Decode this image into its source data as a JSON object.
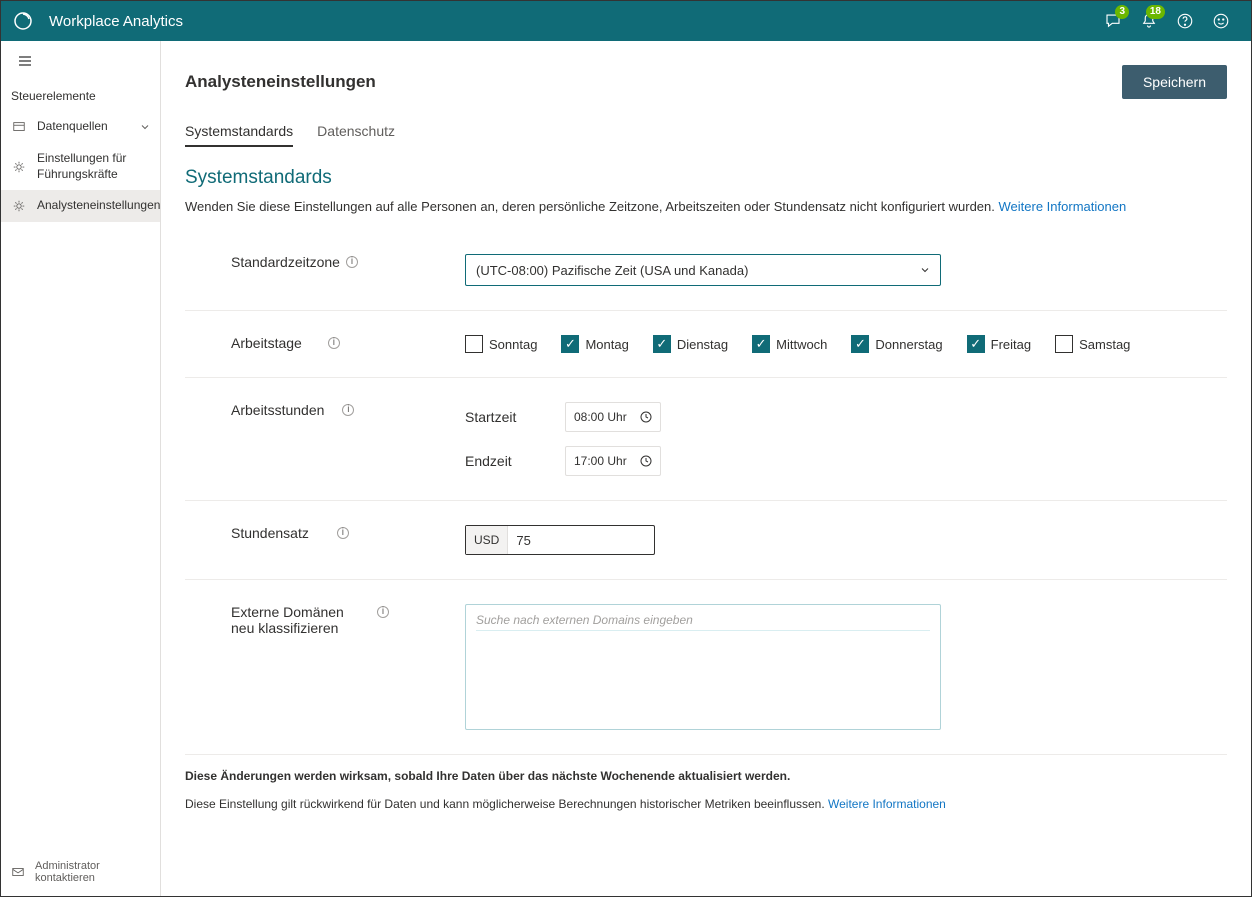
{
  "topbar": {
    "title": "Workplace Analytics",
    "chat_badge": "3",
    "bell_badge": "18"
  },
  "sidebar": {
    "section": "Steuerelemente",
    "items": [
      {
        "label": "Datenquellen",
        "icon": "sources",
        "expandable": true
      },
      {
        "label": "Einstellungen für Führungskräfte",
        "icon": "gear"
      },
      {
        "label": "Analysteneinstellungen",
        "icon": "gear",
        "active": true
      }
    ],
    "footer": "Administrator kontaktieren"
  },
  "page": {
    "title": "Analysteneinstellungen",
    "save": "Speichern",
    "tabs": [
      {
        "label": "Systemstandards",
        "active": true
      },
      {
        "label": "Datenschutz"
      }
    ]
  },
  "section": {
    "heading": "Systemstandards",
    "description": "Wenden Sie diese Einstellungen auf alle Personen an, deren persönliche Zeitzone, Arbeitszeiten oder Stundensatz nicht konfiguriert wurden.",
    "more_info": "Weitere Informationen"
  },
  "fields": {
    "timezone": {
      "label": "Standardzeitzone",
      "value": "(UTC-08:00) Pazifische Zeit (USA und Kanada)"
    },
    "workdays": {
      "label": "Arbeitstage",
      "days": [
        {
          "label": "Sonntag",
          "checked": false
        },
        {
          "label": "Montag",
          "checked": true
        },
        {
          "label": "Dienstag",
          "checked": true
        },
        {
          "label": "Mittwoch",
          "checked": true
        },
        {
          "label": "Donnerstag",
          "checked": true
        },
        {
          "label": "Freitag",
          "checked": true
        },
        {
          "label": "Samstag",
          "checked": false
        }
      ]
    },
    "workhours": {
      "label": "Arbeitsstunden",
      "start_label": "Startzeit",
      "start_value": "08:00 Uhr",
      "end_label": "Endzeit",
      "end_value": "17:00 Uhr"
    },
    "rate": {
      "label": "Stundensatz",
      "currency": "USD",
      "value": "75"
    },
    "domains": {
      "label": "Externe Domänen neu klassifizieren",
      "placeholder": "Suche nach externen Domains eingeben"
    }
  },
  "footer": {
    "note1": "Diese Änderungen werden wirksam, sobald Ihre Daten über das nächste Wochenende aktualisiert werden.",
    "note2": "Diese Einstellung gilt rückwirkend für Daten und kann möglicherweise Berechnungen historischer Metriken beeinflussen.",
    "more_info": "Weitere Informationen"
  },
  "colors": {
    "brand": "#106b77",
    "accent_green": "#6bb700",
    "link": "#1276c4",
    "border": "#e1dfdd",
    "save_btn": "#3d5d6e"
  }
}
